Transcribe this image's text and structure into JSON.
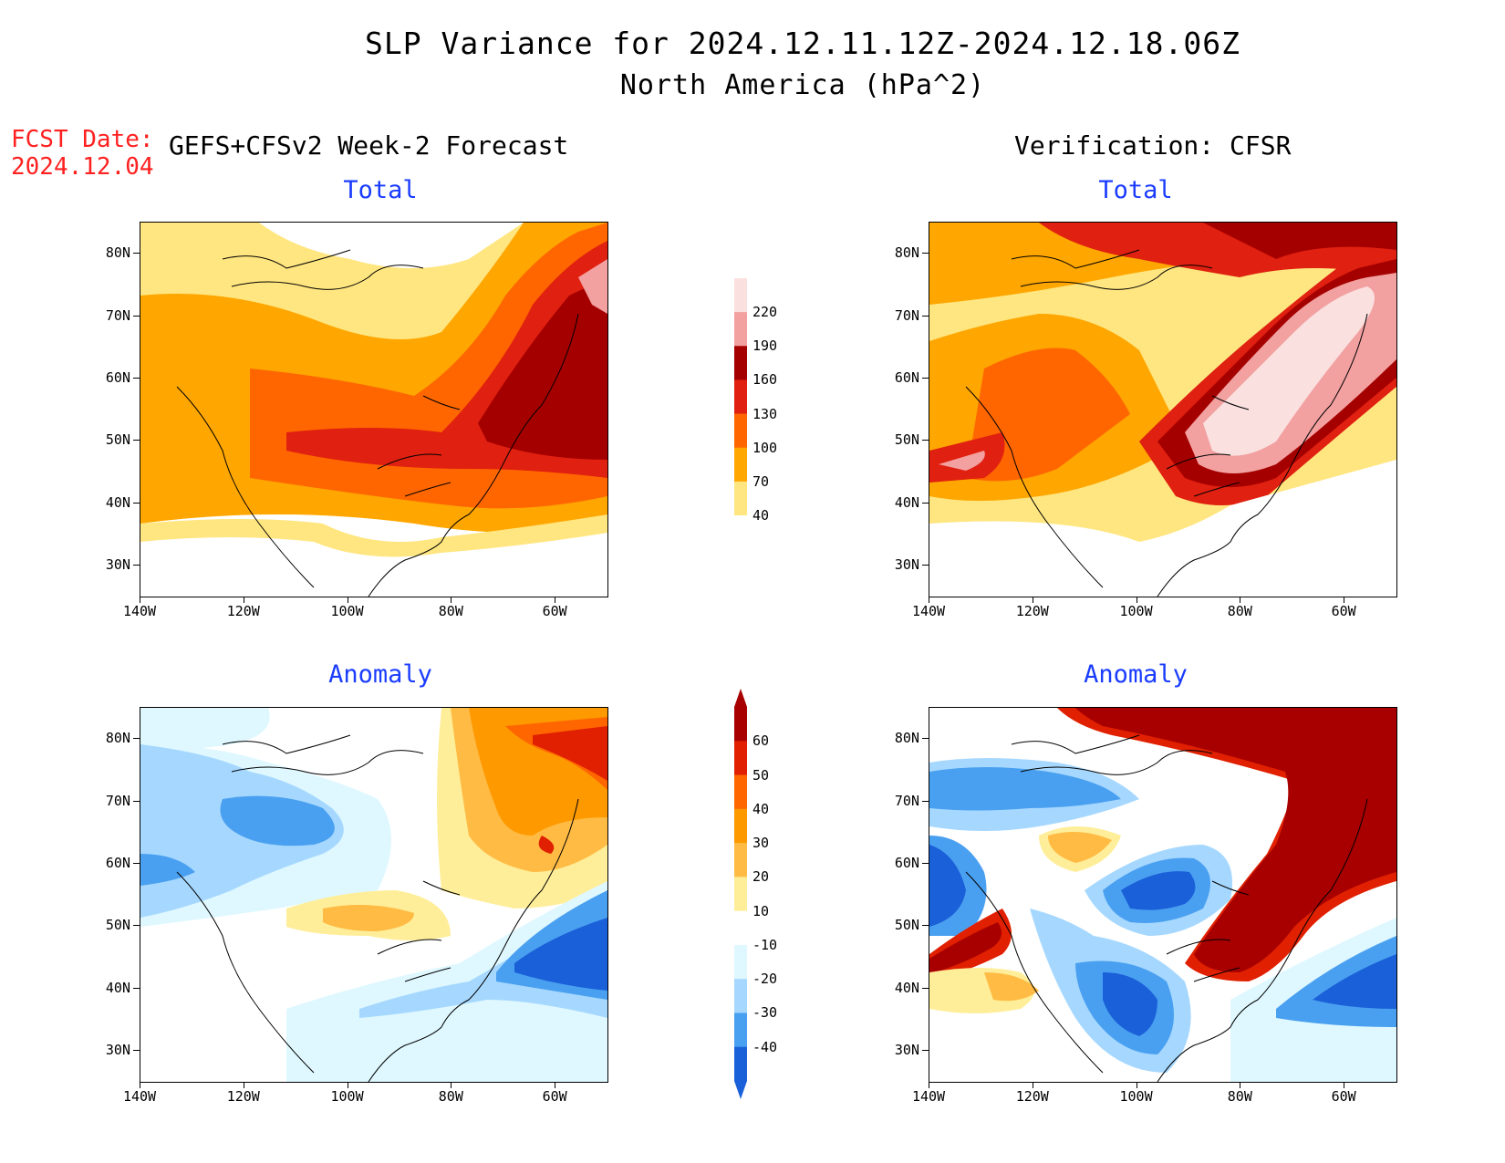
{
  "title": {
    "line1": "SLP Variance for 2024.12.11.12Z-2024.12.18.06Z",
    "line2": "North America (hPa^2)"
  },
  "forecast_date": {
    "label": "FCST Date:",
    "value": "2024.12.04"
  },
  "columns": {
    "left": "GEFS+CFSv2 Week-2 Forecast",
    "right": "Verification: CFSR"
  },
  "panels": [
    {
      "id": "fcst-total",
      "title": "Total"
    },
    {
      "id": "verif-total",
      "title": "Total"
    },
    {
      "id": "fcst-anomaly",
      "title": "Anomaly"
    },
    {
      "id": "verif-anomaly",
      "title": "Anomaly"
    }
  ],
  "axes": {
    "lat_labels": [
      "80N",
      "70N",
      "60N",
      "50N",
      "40N",
      "30N"
    ],
    "lon_labels": [
      "140W",
      "120W",
      "100W",
      "80W",
      "60W"
    ]
  },
  "colorbars": {
    "total": {
      "levels": [
        "40",
        "70",
        "100",
        "130",
        "160",
        "190",
        "220"
      ],
      "colors": [
        "#ffe680",
        "#ffa600",
        "#ff6600",
        "#e02010",
        "#a50000",
        "#f2a0a0",
        "#fbe0e0"
      ]
    },
    "anomaly": {
      "levels": [
        "60",
        "50",
        "40",
        "30",
        "20",
        "10",
        "-10",
        "-20",
        "-30",
        "-40"
      ],
      "colors": [
        "#a80000",
        "#e02000",
        "#ff6600",
        "#ff9900",
        "#ffbb44",
        "#ffee99",
        "#ffffff",
        "#dff8ff",
        "#a6d8ff",
        "#4aa0f0",
        "#1a60d8"
      ]
    }
  }
}
